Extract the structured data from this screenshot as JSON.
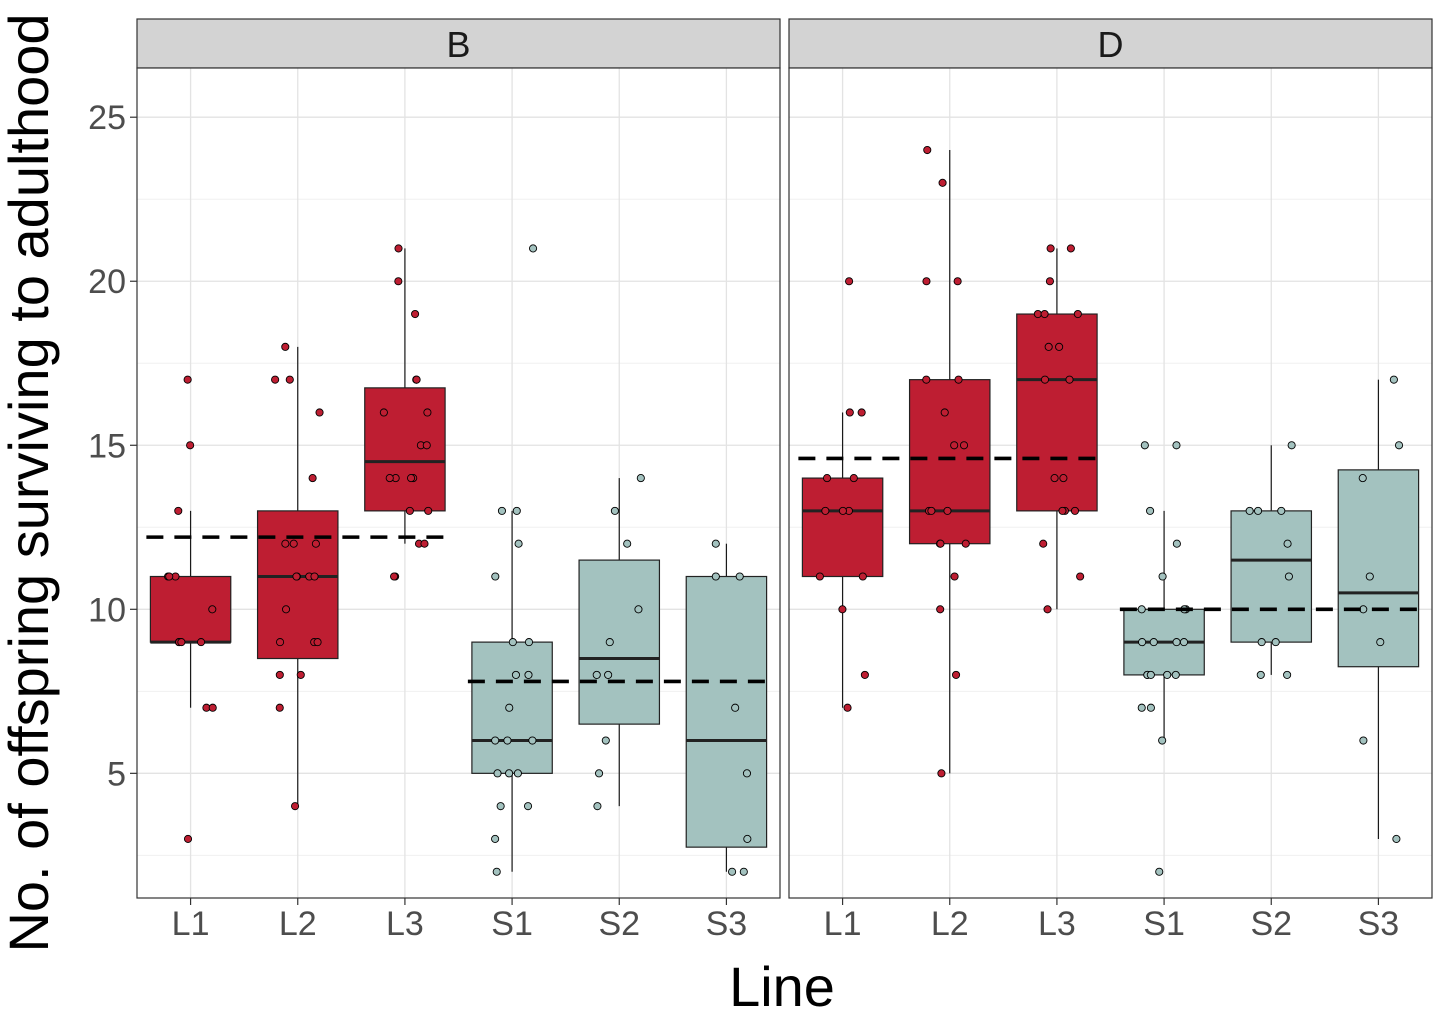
{
  "chart_data": {
    "type": "box",
    "title": "",
    "xlabel": "Line",
    "ylabel": "No. of offspring surviving to adulthood",
    "ylim": [
      1.2,
      26.5
    ],
    "yticks": [
      5,
      10,
      15,
      20,
      25
    ],
    "ytick_labels": [
      "5",
      "10",
      "15",
      "20",
      "25"
    ],
    "categories": [
      "L1",
      "L2",
      "L3",
      "S1",
      "S2",
      "S3"
    ],
    "grid": true,
    "legend": "none",
    "colors": {
      "L": "#be1e32",
      "S": "#a3c2bf"
    },
    "panels": [
      {
        "name": "B",
        "group_means": [
          {
            "from": "L1",
            "to": "L3",
            "value": 12.2
          },
          {
            "from": "S1",
            "to": "S3",
            "value": 7.8
          }
        ],
        "boxes": [
          {
            "category": "L1",
            "group": "L",
            "q1": 9,
            "median": 9,
            "q3": 11,
            "whisker_low": 7,
            "whisker_high": 13,
            "points": [
              17,
              15,
              13,
              11,
              11,
              11,
              10,
              9,
              9,
              9,
              9,
              7,
              7,
              3
            ]
          },
          {
            "category": "L2",
            "group": "L",
            "q1": 8.5,
            "median": 11,
            "q3": 13,
            "whisker_low": 4,
            "whisker_high": 18,
            "points": [
              18,
              17,
              17,
              16,
              14,
              12,
              12,
              12,
              11,
              11,
              11,
              11,
              10,
              9,
              9,
              9,
              8,
              8,
              7,
              4
            ]
          },
          {
            "category": "L3",
            "group": "L",
            "q1": 13,
            "median": 14.5,
            "q3": 16.75,
            "whisker_low": 12,
            "whisker_high": 21,
            "points": [
              21,
              20,
              19,
              17,
              17,
              16,
              16,
              15,
              15,
              14,
              14,
              14,
              14,
              13,
              13,
              12,
              12,
              11,
              11
            ]
          },
          {
            "category": "S1",
            "group": "S",
            "q1": 5,
            "median": 6,
            "q3": 9,
            "whisker_low": 2,
            "whisker_high": 13,
            "points": [
              21,
              13,
              13,
              12,
              11,
              9,
              9,
              8,
              8,
              7,
              6,
              6,
              6,
              5,
              5,
              5,
              4,
              4,
              3,
              2
            ]
          },
          {
            "category": "S2",
            "group": "S",
            "q1": 6.5,
            "median": 8.5,
            "q3": 11.5,
            "whisker_low": 4,
            "whisker_high": 14,
            "points": [
              14,
              13,
              12,
              10,
              9,
              8,
              8,
              6,
              5,
              4
            ]
          },
          {
            "category": "S3",
            "group": "S",
            "q1": 2.75,
            "median": 6,
            "q3": 11,
            "whisker_low": 2,
            "whisker_high": 12,
            "points": [
              12,
              11,
              11,
              7,
              5,
              3,
              2,
              2
            ]
          }
        ]
      },
      {
        "name": "D",
        "group_means": [
          {
            "from": "L1",
            "to": "L3",
            "value": 14.6
          },
          {
            "from": "S1",
            "to": "S3",
            "value": 10
          }
        ],
        "boxes": [
          {
            "category": "L1",
            "group": "L",
            "q1": 11,
            "median": 13,
            "q3": 14,
            "whisker_low": 7,
            "whisker_high": 16,
            "points": [
              20,
              16,
              16,
              14,
              14,
              13,
              13,
              13,
              11,
              11,
              10,
              8,
              7
            ]
          },
          {
            "category": "L2",
            "group": "L",
            "q1": 12,
            "median": 13,
            "q3": 17,
            "whisker_low": 5,
            "whisker_high": 24,
            "points": [
              24,
              23,
              20,
              20,
              17,
              17,
              16,
              15,
              15,
              13,
              13,
              13,
              12,
              12,
              12,
              11,
              10,
              8,
              5
            ]
          },
          {
            "category": "L3",
            "group": "L",
            "q1": 13,
            "median": 17,
            "q3": 19,
            "whisker_low": 10,
            "whisker_high": 21,
            "points": [
              21,
              21,
              20,
              19,
              19,
              19,
              18,
              18,
              17,
              17,
              14,
              14,
              13,
              13,
              13,
              12,
              11,
              10
            ]
          },
          {
            "category": "S1",
            "group": "S",
            "q1": 8,
            "median": 9,
            "q3": 10,
            "whisker_low": 6,
            "whisker_high": 13,
            "points": [
              15,
              15,
              13,
              12,
              11,
              10,
              10,
              10,
              9,
              9,
              9,
              9,
              8,
              8,
              8,
              8,
              8,
              7,
              7,
              6,
              2
            ]
          },
          {
            "category": "S2",
            "group": "S",
            "q1": 9,
            "median": 11.5,
            "q3": 13,
            "whisker_low": 8,
            "whisker_high": 15,
            "points": [
              15,
              13,
              13,
              13,
              12,
              11,
              9,
              9,
              8,
              8
            ]
          },
          {
            "category": "S3",
            "group": "S",
            "q1": 8.25,
            "median": 10.5,
            "q3": 14.25,
            "whisker_low": 3,
            "whisker_high": 17,
            "points": [
              17,
              15,
              14,
              11,
              10,
              9,
              6,
              3
            ]
          }
        ]
      }
    ]
  }
}
